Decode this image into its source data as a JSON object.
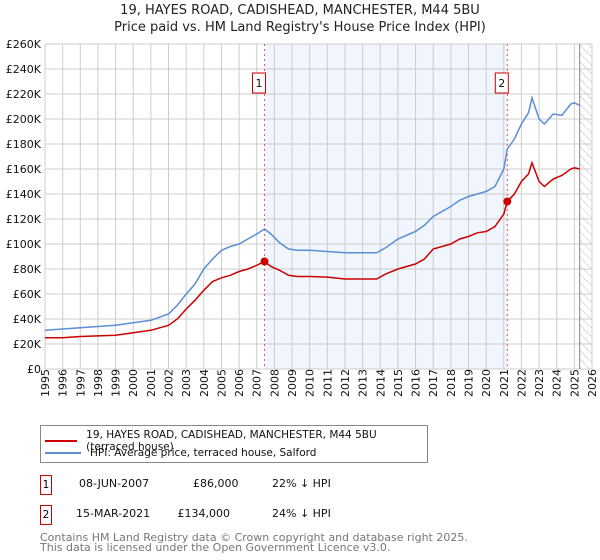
{
  "title": "19, HAYES ROAD, CADISHEAD, MANCHESTER, M44 5BU",
  "subtitle": "Price paid vs. HM Land Registry's House Price Index (HPI)",
  "chart_data": {
    "type": "line",
    "xlim": [
      1995,
      2026
    ],
    "ylim": [
      0,
      260000
    ],
    "yticks": [
      {
        "v": 0,
        "label": "£0"
      },
      {
        "v": 20000,
        "label": "£20K"
      },
      {
        "v": 40000,
        "label": "£40K"
      },
      {
        "v": 60000,
        "label": "£60K"
      },
      {
        "v": 80000,
        "label": "£80K"
      },
      {
        "v": 100000,
        "label": "£100K"
      },
      {
        "v": 120000,
        "label": "£120K"
      },
      {
        "v": 140000,
        "label": "£140K"
      },
      {
        "v": 160000,
        "label": "£160K"
      },
      {
        "v": 180000,
        "label": "£180K"
      },
      {
        "v": 200000,
        "label": "£200K"
      },
      {
        "v": 220000,
        "label": "£220K"
      },
      {
        "v": 240000,
        "label": "£240K"
      },
      {
        "v": 260000,
        "label": "£260K"
      }
    ],
    "xticks": [
      "1995",
      "1996",
      "1997",
      "1998",
      "1999",
      "2000",
      "2001",
      "2002",
      "2003",
      "2004",
      "2005",
      "2006",
      "2007",
      "2008",
      "2009",
      "2010",
      "2011",
      "2012",
      "2013",
      "2014",
      "2015",
      "2016",
      "2017",
      "2018",
      "2019",
      "2020",
      "2021",
      "2022",
      "2023",
      "2024",
      "2025",
      "2026"
    ],
    "shaded_range": [
      2007.44,
      2021.2
    ],
    "hatched_from": 2025.3,
    "series": [
      {
        "name": "19, HAYES ROAD, CADISHEAD, MANCHESTER, M44 5BU (terraced house)",
        "color": "#cc0000",
        "x": [
          1995,
          1996,
          1997,
          1998,
          1999,
          2000,
          2001,
          2002,
          2002.5,
          2003,
          2003.5,
          2004,
          2004.5,
          2005,
          2005.5,
          2006,
          2006.5,
          2007,
          2007.44,
          2007.8,
          2008.3,
          2008.8,
          2009.3,
          2010,
          2011,
          2012,
          2013,
          2013.8,
          2014.3,
          2015,
          2016,
          2016.5,
          2017,
          2018,
          2018.5,
          2019,
          2019.5,
          2020,
          2020.5,
          2021,
          2021.2,
          2021.6,
          2022,
          2022.4,
          2022.6,
          2023,
          2023.3,
          2023.8,
          2024.3,
          2024.8,
          2025,
          2025.3
        ],
        "y": [
          25000,
          25000,
          26000,
          26500,
          27000,
          29000,
          31000,
          35000,
          40000,
          48000,
          55000,
          63000,
          70000,
          73000,
          75000,
          78000,
          80000,
          83000,
          86000,
          82000,
          79000,
          75000,
          74000,
          74000,
          73500,
          72000,
          72000,
          72000,
          76000,
          80000,
          84000,
          88000,
          96000,
          100000,
          104000,
          106000,
          109000,
          110000,
          114000,
          124000,
          134000,
          140000,
          150000,
          156000,
          165000,
          150000,
          146000,
          152000,
          155000,
          160000,
          161000,
          160000
        ]
      },
      {
        "name": "HPI: Average price, terraced house, Salford",
        "color": "#5b8ed6",
        "x": [
          1995,
          1996,
          1997,
          1998,
          1999,
          2000,
          2001,
          2002,
          2002.5,
          2003,
          2003.5,
          2004,
          2004.5,
          2005,
          2005.5,
          2006,
          2006.5,
          2007,
          2007.44,
          2007.8,
          2008.3,
          2008.8,
          2009.3,
          2010,
          2011,
          2012,
          2013,
          2013.8,
          2014.3,
          2015,
          2016,
          2016.5,
          2017,
          2018,
          2018.5,
          2019,
          2019.5,
          2020,
          2020.5,
          2021,
          2021.2,
          2021.6,
          2022,
          2022.4,
          2022.6,
          2023,
          2023.3,
          2023.8,
          2024.3,
          2024.8,
          2025,
          2025.3
        ],
        "y": [
          31000,
          32000,
          33000,
          34000,
          35000,
          37000,
          39000,
          44000,
          51000,
          60000,
          68000,
          80000,
          88000,
          95000,
          98000,
          100000,
          104000,
          108000,
          112000,
          108000,
          101000,
          96000,
          95000,
          95000,
          94000,
          93000,
          93000,
          93000,
          97000,
          104000,
          110000,
          115000,
          122000,
          130000,
          135000,
          138000,
          140000,
          142000,
          146000,
          160000,
          176000,
          184000,
          196000,
          205000,
          217000,
          200000,
          196000,
          204000,
          203000,
          212000,
          213000,
          211000
        ]
      }
    ],
    "sales": [
      {
        "n": "1",
        "date": "08-JUN-2007",
        "x": 2007.44,
        "price": 86000,
        "price_label": "£86,000",
        "delta": "22% ↓ HPI"
      },
      {
        "n": "2",
        "date": "15-MAR-2021",
        "x": 2021.2,
        "price": 134000,
        "price_label": "£134,000",
        "delta": "24% ↓ HPI"
      }
    ]
  },
  "footer1": "Contains HM Land Registry data © Crown copyright and database right 2025.",
  "footer2": "This data is licensed under the Open Government Licence v3.0."
}
